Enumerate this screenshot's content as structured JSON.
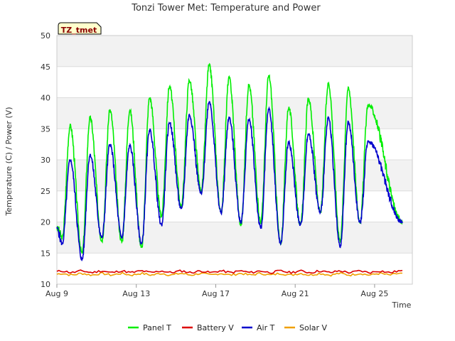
{
  "chart_data": {
    "type": "line",
    "title": "Tonzi Tower Met: Temperature and Power",
    "xlabel": "Time",
    "ylabel": "Temperature (C) / Power (V)",
    "badge": "TZ_tmet",
    "xlim": [
      0,
      17.9
    ],
    "ylim": [
      10,
      50
    ],
    "yticks": [
      10,
      15,
      20,
      25,
      30,
      35,
      40,
      45,
      50
    ],
    "xticks": [
      {
        "value": 0,
        "label": "Aug 9"
      },
      {
        "value": 4,
        "label": "Aug 13"
      },
      {
        "value": 8,
        "label": "Aug 17"
      },
      {
        "value": 12,
        "label": "Aug 21"
      },
      {
        "value": 16,
        "label": "Aug 25"
      }
    ],
    "daily_cycle": {
      "panel_min": [
        17.5,
        15.0,
        17.0,
        16.8,
        15.8,
        21.0,
        22.5,
        25.0,
        21.5,
        19.5,
        20.0,
        16.5,
        19.5,
        21.5,
        17.0,
        20.0
      ],
      "panel_max": [
        35.5,
        36.8,
        38.0,
        38.0,
        40.0,
        41.8,
        42.8,
        45.2,
        43.2,
        42.0,
        43.5,
        38.4,
        39.8,
        42.3,
        41.5,
        38.8
      ],
      "air_min": [
        16.5,
        14.0,
        17.5,
        17.5,
        16.5,
        19.5,
        22.0,
        24.5,
        21.5,
        20.0,
        19.0,
        16.5,
        19.5,
        21.5,
        16.0,
        20.0
      ],
      "air_max": [
        30.0,
        30.8,
        32.5,
        32.3,
        34.8,
        36.0,
        37.2,
        39.4,
        36.8,
        36.5,
        38.2,
        32.8,
        34.2,
        36.7,
        36.0,
        33.0
      ],
      "start_value": 19.0,
      "end_value": 20.0,
      "end_day": 17.4
    },
    "series": [
      {
        "name": "Panel T",
        "color": "#00ee00"
      },
      {
        "name": "Battery V",
        "color": "#dd0000",
        "level": 12.0
      },
      {
        "name": "Air T",
        "color": "#0000cc"
      },
      {
        "name": "Solar V",
        "color": "#f0a000",
        "level": 11.6
      }
    ]
  }
}
